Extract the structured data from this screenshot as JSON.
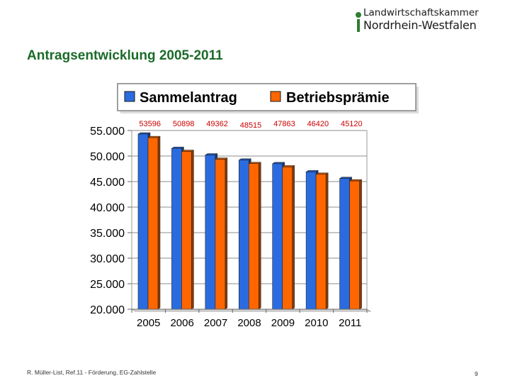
{
  "logo": {
    "line1": "Landwirtschaftskammer",
    "line2": "Nordrhein-Westfalen"
  },
  "page_title": "Antragsentwicklung 2005-2011",
  "footer": {
    "left": "R. Müller-List, Ref.11 - Förderung, EG-Zahlstelle",
    "page_number": "9"
  },
  "colors": {
    "title": "#1b6b2a",
    "logo_green": "#2e7d32",
    "series_blue": "#2a6ce0",
    "series_orange": "#ff6600",
    "label_red": "#cc0000"
  },
  "chart_data": {
    "type": "bar",
    "categories": [
      "2005",
      "2006",
      "2007",
      "2008",
      "2009",
      "2010",
      "2011"
    ],
    "series": [
      {
        "name": "Sammelantrag",
        "color": "#2a6ce0",
        "values": [
          54300,
          51500,
          50200,
          49200,
          48500,
          46900,
          45600
        ]
      },
      {
        "name": "Betriebsprämie",
        "color": "#ff6600",
        "values": [
          53596,
          50898,
          49362,
          48515,
          47863,
          46420,
          45120
        ]
      }
    ],
    "data_labels": [
      "53596",
      "50898",
      "49362",
      "48515",
      "47863",
      "46420",
      "45120"
    ],
    "ylim": [
      20000,
      55000
    ],
    "yticks": [
      20000,
      25000,
      30000,
      35000,
      40000,
      45000,
      50000,
      55000
    ],
    "ytick_labels": [
      "20.000",
      "25.000",
      "30.000",
      "35.000",
      "40.000",
      "45.000",
      "50.000",
      "55.000"
    ],
    "legend_position": "top",
    "grid": true,
    "bar_style": "3d",
    "xlabel": "",
    "ylabel": ""
  }
}
